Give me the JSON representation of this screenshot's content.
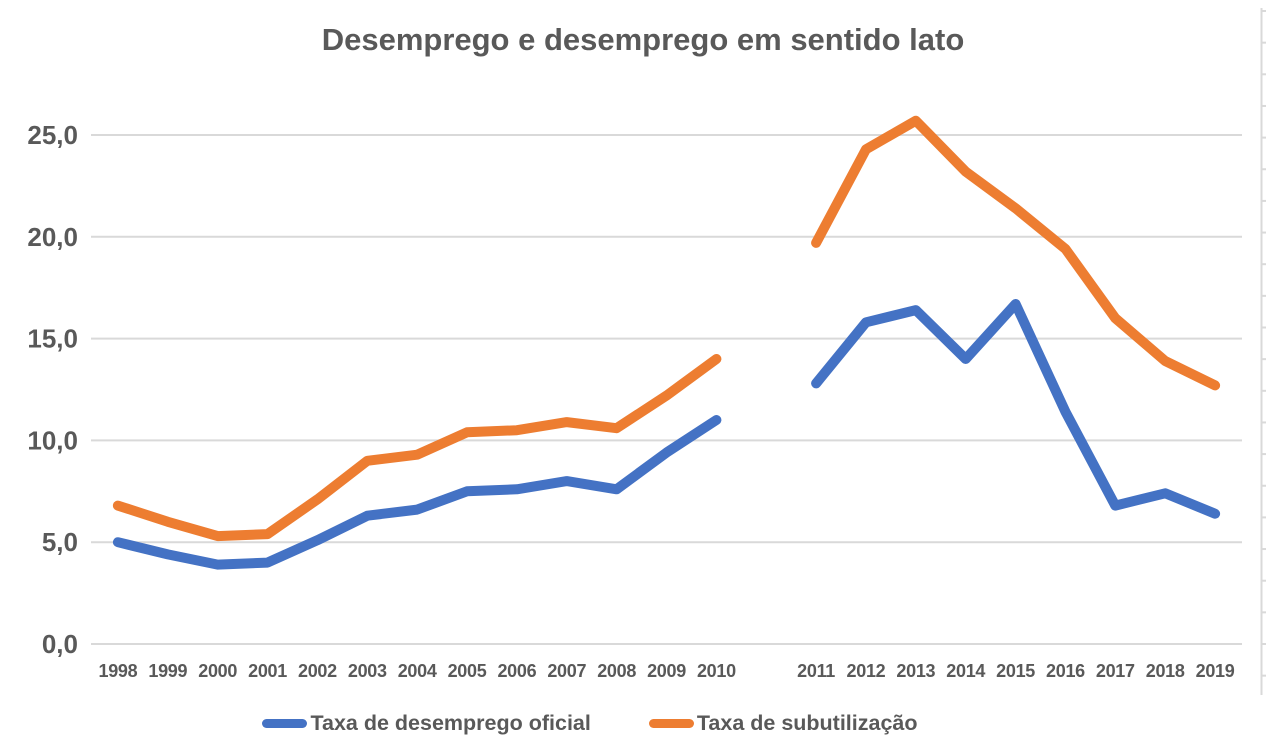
{
  "chart_data": {
    "type": "line",
    "title": "Desemprego e desemprego em sentido lato",
    "categories": [
      "1998",
      "1999",
      "2000",
      "2001",
      "2002",
      "2003",
      "2004",
      "2005",
      "2006",
      "2007",
      "2008",
      "2009",
      "2010",
      "",
      "2011",
      "2012",
      "2013",
      "2014",
      "2015",
      "2016",
      "2017",
      "2018",
      "2019"
    ],
    "series": [
      {
        "name": "Taxa de desemprego oficial",
        "color": "#4472C4",
        "values": [
          5.0,
          4.4,
          3.9,
          4.0,
          5.1,
          6.3,
          6.6,
          7.5,
          7.6,
          8.0,
          7.6,
          9.4,
          11.0,
          null,
          12.8,
          15.8,
          16.4,
          14.0,
          16.7,
          11.4,
          6.8,
          7.4,
          6.4
        ]
      },
      {
        "name": "Taxa de subutilização",
        "color": "#ED7D31",
        "values": [
          6.8,
          6.0,
          5.3,
          5.4,
          7.1,
          9.0,
          9.3,
          10.4,
          10.5,
          10.9,
          10.6,
          12.2,
          14.0,
          null,
          19.7,
          24.3,
          25.7,
          23.2,
          21.4,
          19.4,
          16.0,
          13.9,
          12.7
        ]
      }
    ],
    "y_axis": {
      "tick_values": [
        0,
        5,
        10,
        15,
        20,
        25
      ],
      "tick_labels": [
        "0,0",
        "5,0",
        "10,0",
        "15,0",
        "20,0",
        "25,0"
      ],
      "range": [
        0,
        27.5
      ],
      "grid": true
    },
    "legend_position": "bottom"
  },
  "colors": {
    "text": "#595959",
    "gridline": "#D9D9D9",
    "background": "#FFFFFF",
    "series_official": "#4472C4",
    "series_subutilizacao": "#ED7D31"
  }
}
